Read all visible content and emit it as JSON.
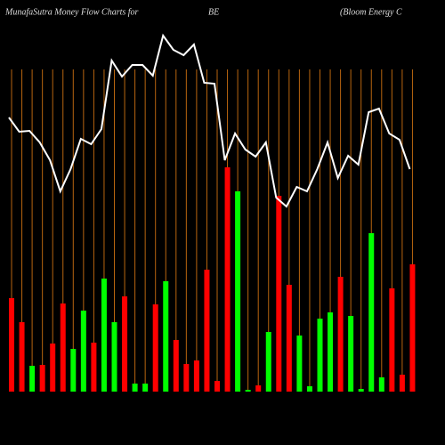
{
  "chart_data": {
    "type": "money-flow",
    "title": "MunafaSutra  Money Flow  Charts for",
    "symbol": "BE",
    "company": "(Bloom Energy C",
    "background": "#000000",
    "grid_color": "#b8650f",
    "ylim": [
      0,
      440
    ],
    "bars": {
      "values": [
        105,
        78,
        29,
        30,
        54,
        99,
        48,
        91,
        55,
        127,
        78,
        107,
        9,
        9,
        98,
        124,
        58,
        31,
        35,
        137,
        12,
        252,
        225,
        2,
        7,
        67,
        220,
        120,
        63,
        6,
        82,
        89,
        129,
        85,
        3,
        178,
        16,
        116,
        19,
        143
      ],
      "colors": [
        "#ff0000",
        "#ff0000",
        "#00ff00",
        "#ff0000",
        "#ff0000",
        "#ff0000",
        "#00ff00",
        "#00ff00",
        "#ff0000",
        "#00ff00",
        "#00ff00",
        "#ff0000",
        "#00ff00",
        "#00ff00",
        "#ff0000",
        "#00ff00",
        "#ff0000",
        "#ff0000",
        "#ff0000",
        "#ff0000",
        "#ff0000",
        "#ff0000",
        "#00ff00",
        "#00ff00",
        "#ff0000",
        "#00ff00",
        "#ff0000",
        "#ff0000",
        "#00ff00",
        "#00ff00",
        "#00ff00",
        "#00ff00",
        "#ff0000",
        "#00ff00",
        "#00ff00",
        "#00ff00",
        "#00ff00",
        "#ff0000",
        "#ff0000",
        "#ff0000"
      ]
    },
    "line": {
      "color": "#ffffff",
      "values": [
        308,
        292,
        293,
        280,
        260,
        225,
        250,
        284,
        278,
        295,
        372,
        354,
        367,
        367,
        355,
        400,
        384,
        378,
        390,
        347,
        346,
        260,
        290,
        272,
        264,
        280,
        218,
        208,
        230,
        225,
        250,
        280,
        240,
        265,
        255,
        314,
        318,
        290,
        283,
        250
      ]
    }
  }
}
